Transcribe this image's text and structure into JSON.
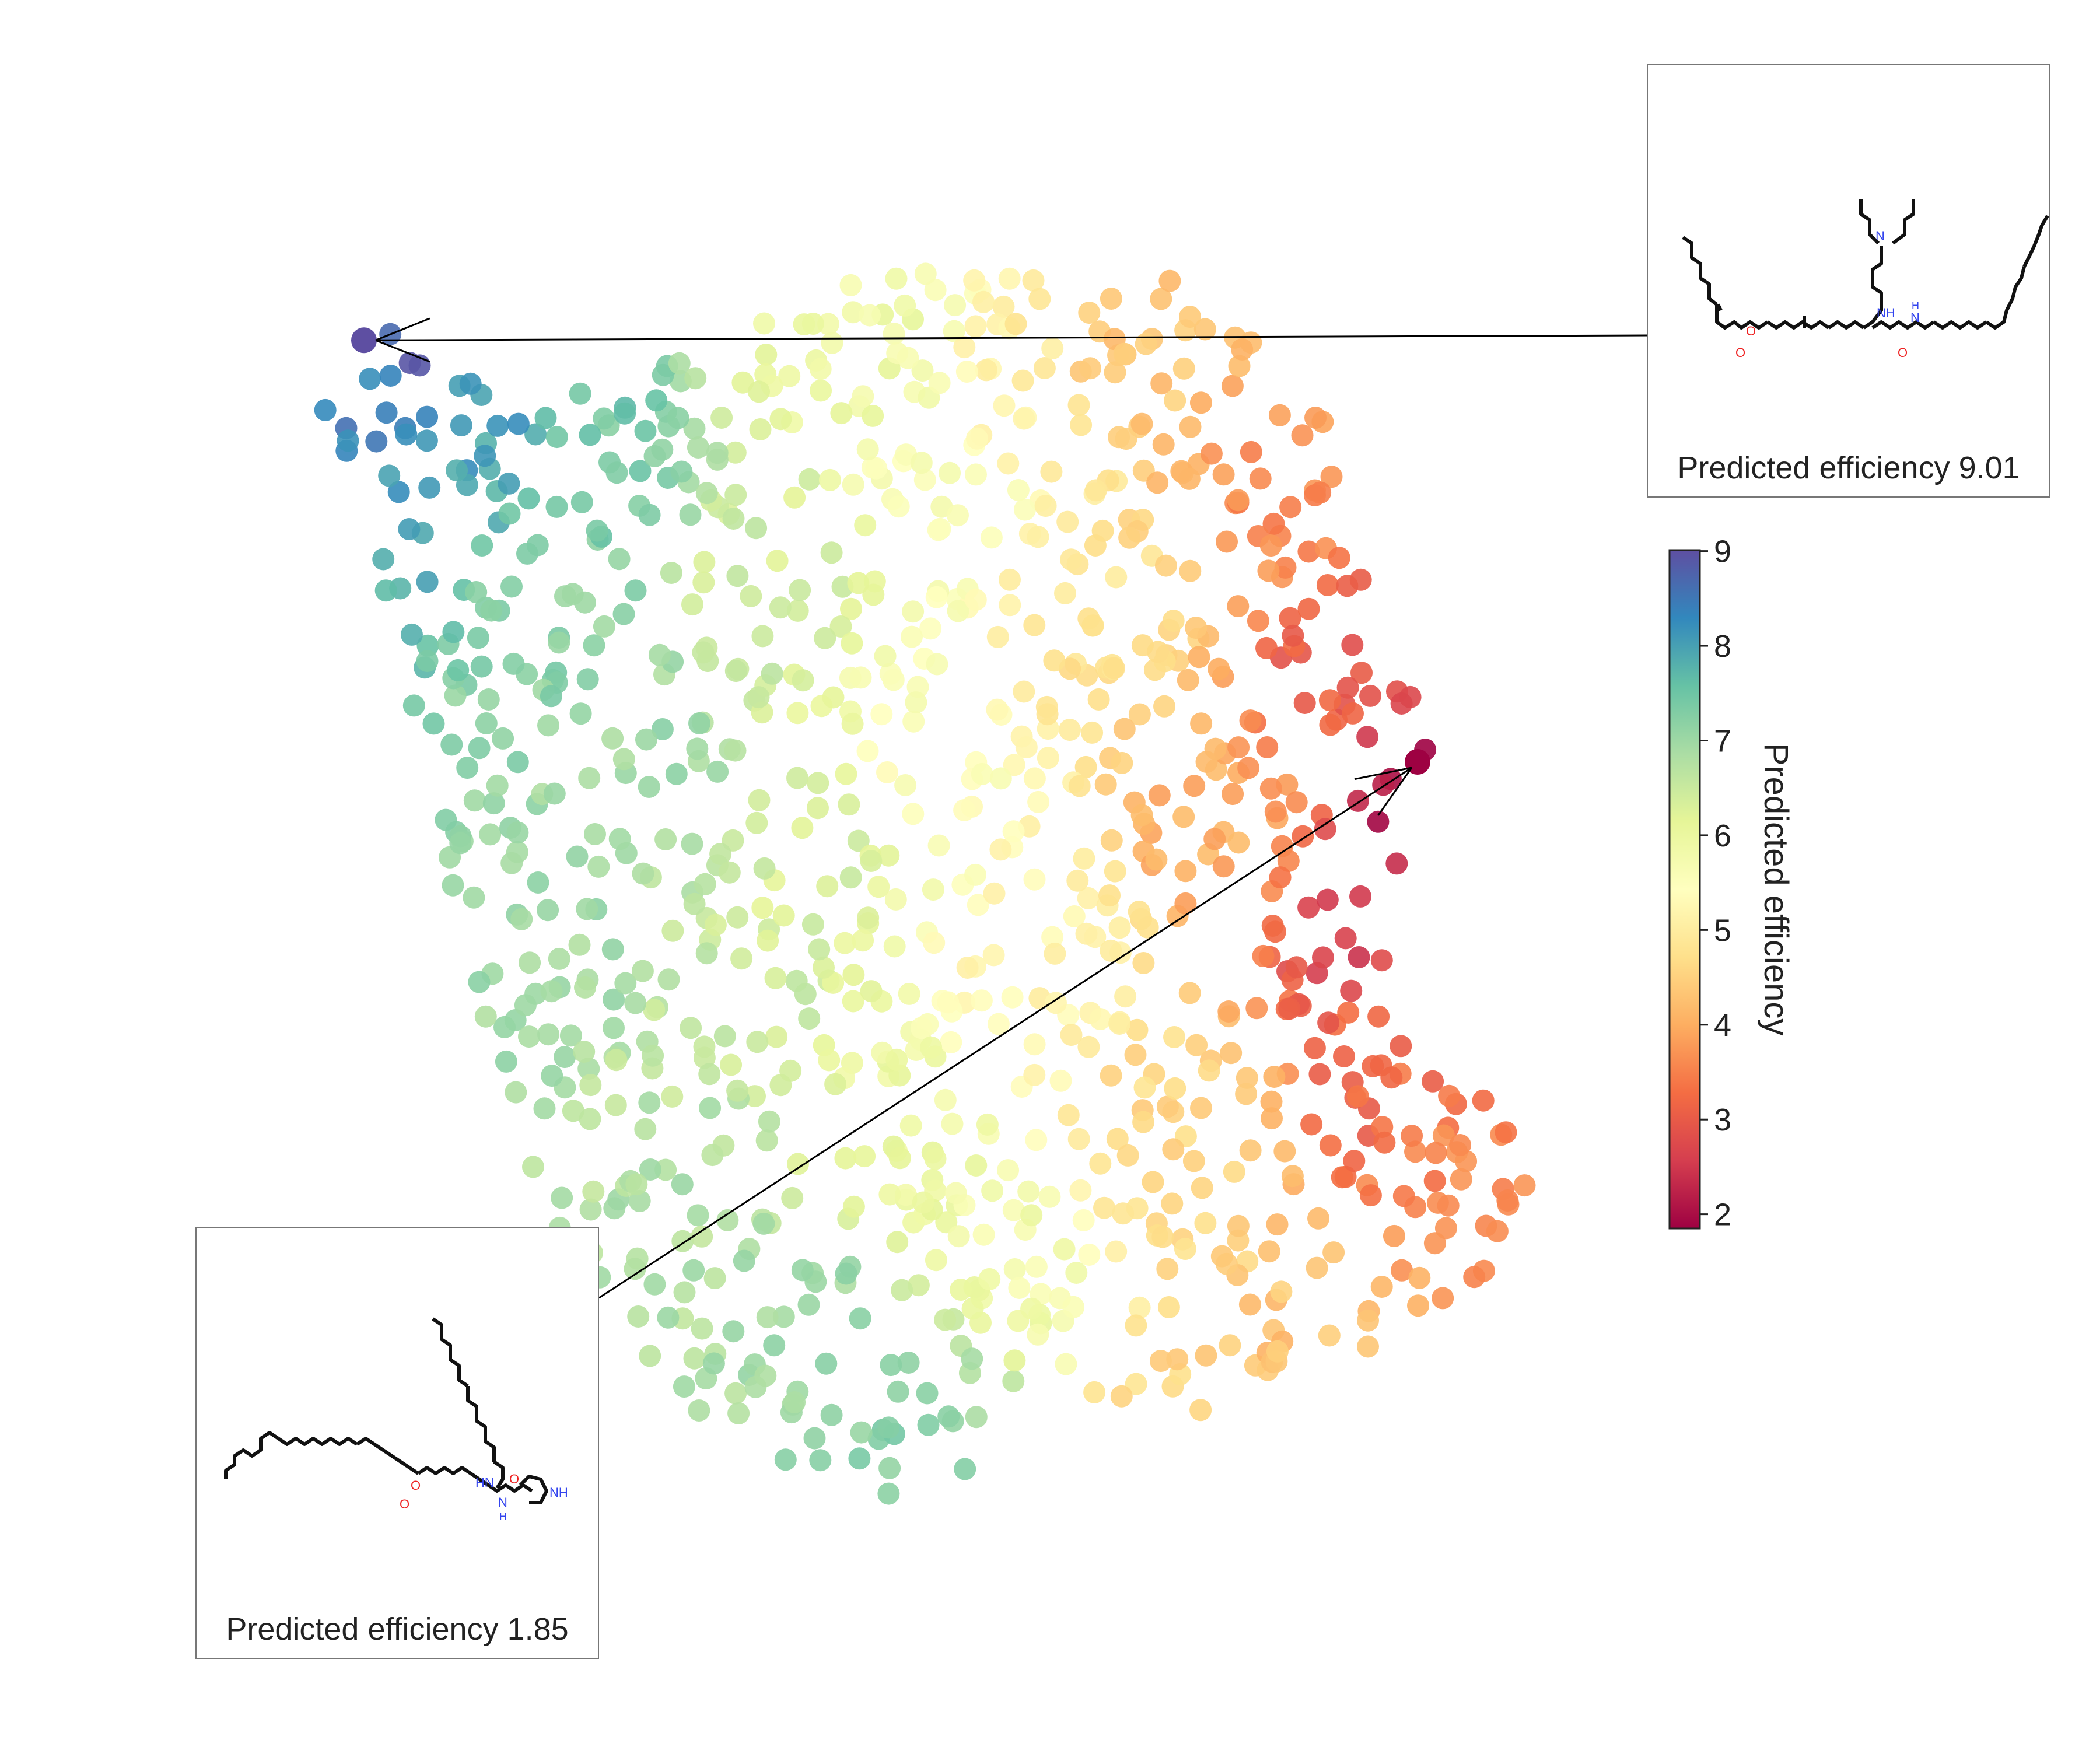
{
  "chart_data": {
    "type": "scatter",
    "title": "",
    "xlabel": "",
    "ylabel": "",
    "axes_visible": false,
    "colormap": "Spectral",
    "colorbar": {
      "label": "Predicted efficiency",
      "min": 1.85,
      "max": 9.01,
      "ticks": [
        "2",
        "3",
        "4",
        "5",
        "6",
        "7",
        "8",
        "9"
      ]
    },
    "insets": [
      {
        "caption": "Predicted efficiency 9.01",
        "value": 9.01,
        "molecule_labels": [
          "N",
          "NH",
          "N",
          "H",
          "O",
          "O",
          "O"
        ]
      },
      {
        "caption": "Predicted efficiency 1.85",
        "value": 1.85,
        "molecule_labels": [
          "HN",
          "O",
          "O",
          "O",
          "N",
          "H",
          "NH"
        ]
      }
    ],
    "point_count_estimate": 1100,
    "regions": [
      {
        "x": 0.08,
        "y": 0.93,
        "value": 8.8
      },
      {
        "x": 0.04,
        "y": 0.88,
        "value": 8.4
      },
      {
        "x": 0.14,
        "y": 0.86,
        "value": 8.0
      },
      {
        "x": 0.05,
        "y": 0.76,
        "value": 7.9
      },
      {
        "x": 0.22,
        "y": 0.82,
        "value": 7.4
      },
      {
        "x": 0.18,
        "y": 0.68,
        "value": 7.2
      },
      {
        "x": 0.2,
        "y": 0.45,
        "value": 7.0
      },
      {
        "x": 0.27,
        "y": 0.62,
        "value": 7.0
      },
      {
        "x": 0.32,
        "y": 0.28,
        "value": 6.8
      },
      {
        "x": 0.42,
        "y": 0.18,
        "value": 7.0
      },
      {
        "x": 0.48,
        "y": 0.1,
        "value": 7.2
      },
      {
        "x": 0.33,
        "y": 0.4,
        "value": 6.5
      },
      {
        "x": 0.42,
        "y": 0.55,
        "value": 6.3
      },
      {
        "x": 0.38,
        "y": 0.75,
        "value": 6.4
      },
      {
        "x": 0.46,
        "y": 0.3,
        "value": 6.0
      },
      {
        "x": 0.55,
        "y": 0.22,
        "value": 5.8
      },
      {
        "x": 0.45,
        "y": 0.92,
        "value": 5.9
      },
      {
        "x": 0.52,
        "y": 0.8,
        "value": 5.6
      },
      {
        "x": 0.5,
        "y": 0.6,
        "value": 5.5
      },
      {
        "x": 0.58,
        "y": 0.45,
        "value": 5.2
      },
      {
        "x": 0.58,
        "y": 0.88,
        "value": 5.1
      },
      {
        "x": 0.64,
        "y": 0.72,
        "value": 4.8
      },
      {
        "x": 0.66,
        "y": 0.92,
        "value": 4.3
      },
      {
        "x": 0.7,
        "y": 0.3,
        "value": 4.6
      },
      {
        "x": 0.74,
        "y": 0.55,
        "value": 4.0
      },
      {
        "x": 0.78,
        "y": 0.8,
        "value": 3.6
      },
      {
        "x": 0.84,
        "y": 0.66,
        "value": 3.0
      },
      {
        "x": 0.86,
        "y": 0.48,
        "value": 2.6
      },
      {
        "x": 0.88,
        "y": 0.35,
        "value": 3.2
      },
      {
        "x": 0.95,
        "y": 0.3,
        "value": 3.5
      },
      {
        "x": 0.9,
        "y": 0.58,
        "value": 2.0
      },
      {
        "x": 0.72,
        "y": 0.08,
        "value": 4.6
      },
      {
        "x": 0.8,
        "y": 0.12,
        "value": 4.3
      }
    ]
  }
}
